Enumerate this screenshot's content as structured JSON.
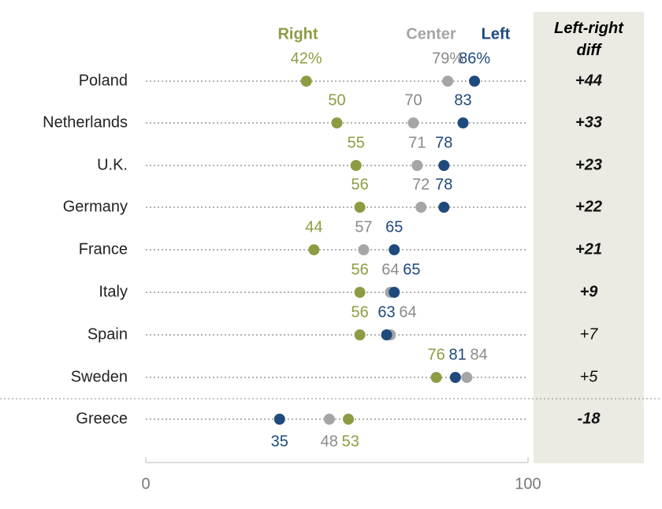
{
  "chart_data": {
    "type": "dot",
    "categories": [
      "Poland",
      "Netherlands",
      "U.K.",
      "Germany",
      "France",
      "Italy",
      "Spain",
      "Sweden",
      "Greece"
    ],
    "series": [
      {
        "name": "Right",
        "color": "#8d9c43",
        "values": [
          42,
          50,
          55,
          56,
          44,
          56,
          56,
          76,
          53
        ],
        "value_labels": [
          "42%",
          "50",
          "55",
          "56",
          "44",
          "56",
          "56",
          "76",
          "53"
        ]
      },
      {
        "name": "Center",
        "color": "#a5a5a5",
        "values": [
          79,
          70,
          71,
          72,
          57,
          64,
          64,
          84,
          48
        ],
        "value_labels": [
          "79%",
          "70",
          "71",
          "72",
          "57",
          "64",
          "64",
          "84",
          "48"
        ]
      },
      {
        "name": "Left",
        "color": "#1f4a7c",
        "values": [
          86,
          83,
          78,
          78,
          65,
          65,
          63,
          81,
          35
        ],
        "value_labels": [
          "86%",
          "83",
          "78",
          "78",
          "65",
          "65",
          "63",
          "81",
          "35"
        ]
      }
    ],
    "diff": {
      "title": "Left-right diff",
      "values": [
        44,
        33,
        23,
        22,
        21,
        9,
        7,
        5,
        -18
      ],
      "value_labels": [
        "+44",
        "+33",
        "+23",
        "+22",
        "+21",
        "+9",
        "+7",
        "+5",
        "-18"
      ]
    },
    "xlim": [
      0,
      100
    ],
    "xticks": [
      0,
      100
    ]
  }
}
